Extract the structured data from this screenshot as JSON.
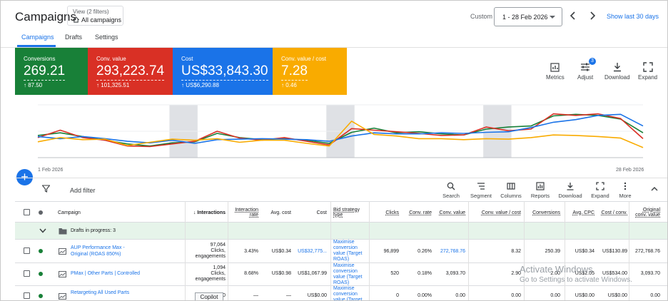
{
  "header": {
    "title": "Campaigns",
    "view_label": "View (2 filters)",
    "view_value": "All campaigns",
    "custom_label": "Custom",
    "date_range": "1 - 28 Feb 2026",
    "show_last": "Show last 30 days"
  },
  "tabs": [
    {
      "label": "Campaigns",
      "active": true
    },
    {
      "label": "Drafts",
      "active": false
    },
    {
      "label": "Settings",
      "active": false
    }
  ],
  "scorecards": [
    {
      "label": "Conversions",
      "value": "269.21",
      "delta": "↑ 87.50",
      "color": "#188038"
    },
    {
      "label": "Conv. value",
      "value": "293,223.74",
      "delta": "↑ 101,325.51",
      "color": "#d93025"
    },
    {
      "label": "Cost",
      "value": "US$33,843.30",
      "delta": "↑ US$6,290.88",
      "color": "#1a73e8"
    },
    {
      "label": "Conv. value / cost",
      "value": "7.28",
      "delta": "↑ 0.46",
      "color": "#f9ab00"
    }
  ],
  "chart_tools": {
    "metrics": "Metrics",
    "adjust": "Adjust",
    "adjust_badge": "3",
    "download": "Download",
    "expand": "Expand"
  },
  "chart_data": {
    "type": "line",
    "x_start_label": "1 Feb 2026",
    "x_end_label": "28 Feb 2026",
    "x": [
      1,
      2,
      3,
      4,
      5,
      6,
      7,
      8,
      9,
      10,
      11,
      12,
      13,
      14,
      15,
      16,
      17,
      18,
      19,
      20,
      21,
      22,
      23,
      24,
      25,
      26,
      27,
      28
    ],
    "series": [
      {
        "color": "#188038",
        "values": [
          42,
          47,
          40,
          33,
          26,
          22,
          28,
          30,
          46,
          38,
          34,
          36,
          33,
          27,
          48,
          56,
          47,
          49,
          45,
          43,
          54,
          58,
          60,
          79,
          82,
          80,
          73,
          47
        ]
      },
      {
        "color": "#d93025",
        "values": [
          38,
          52,
          38,
          33,
          22,
          21,
          26,
          31,
          50,
          37,
          33,
          38,
          31,
          24,
          55,
          52,
          49,
          46,
          42,
          43,
          58,
          51,
          54,
          83,
          80,
          83,
          74,
          36
        ]
      },
      {
        "color": "#1a73e8",
        "values": [
          40,
          36,
          40,
          36,
          31,
          28,
          33,
          27,
          34,
          35,
          36,
          35,
          34,
          31,
          41,
          47,
          45,
          45,
          47,
          46,
          48,
          49,
          57,
          67,
          72,
          80,
          82,
          60
        ]
      },
      {
        "color": "#f9ab00",
        "values": [
          30,
          38,
          34,
          35,
          23,
          29,
          35,
          33,
          36,
          29,
          33,
          33,
          27,
          22,
          69,
          44,
          41,
          36,
          36,
          34,
          36,
          35,
          38,
          43,
          42,
          40,
          37,
          19
        ]
      }
    ],
    "shaded_weekends": [
      [
        7,
        8
      ],
      [
        14,
        15
      ],
      [
        21,
        22
      ]
    ],
    "grid": true
  },
  "toolbar": {
    "add_filter": "Add filter",
    "items": [
      "Search",
      "Segment",
      "Columns",
      "Reports",
      "Download",
      "Expand",
      "More"
    ]
  },
  "table": {
    "headers": {
      "campaign": "Campaign",
      "interactions": "↓ Interactions",
      "interaction_rate": "Interaction rate",
      "avg_cost": "Avg. cost",
      "cost": "Cost",
      "bid_strategy": "Bid strategy type",
      "clicks": "Clicks",
      "conv_rate": "Conv. rate",
      "conv_value": "Conv. value",
      "conv_value_cost": "Conv. value / cost",
      "conversions": "Conversions",
      "avg_cpc": "Avg. CPC",
      "cost_conv": "Cost / conv.",
      "original_conv_value": "Original conv. value"
    },
    "drafts_label": "Drafts in progress: 3",
    "rows": [
      {
        "name": "AUP Performance Max - Original (ROAS 850%)",
        "interactions": "97,064",
        "interactions_sub": "Clicks, engagements",
        "interaction_rate": "3.43%",
        "avg_cost": "US$0.34",
        "cost": "US$32,775...",
        "bid_strategy": "Maximise conversion value (Target ROAS)",
        "clicks": "96,899",
        "conv_rate": "0.26%",
        "conv_value": "272,768.76",
        "conv_value_cost": "8.32",
        "conversions": "250.39",
        "avg_cpc": "US$0.34",
        "cost_conv": "US$130.89",
        "original_conv_value": "272,768.76"
      },
      {
        "name": "PMax | Other Parts | Controlled",
        "interactions": "1,094",
        "interactions_sub": "Clicks, engagements",
        "interaction_rate": "8.68%",
        "avg_cost": "US$0.98",
        "cost": "US$1,067.99",
        "bid_strategy": "Maximise conversion value (Target ROAS)",
        "clicks": "520",
        "conv_rate": "0.18%",
        "conv_value": "3,093.70",
        "conv_value_cost": "2.90",
        "conversions": "2.00",
        "avg_cpc": "US$2.05",
        "cost_conv": "US$534.00",
        "original_conv_value": "3,093.70"
      },
      {
        "name": "Retargeting All Used Parts",
        "interactions": "0",
        "interaction_rate": "—",
        "avg_cost": "—",
        "cost": "US$0.00",
        "bid_strategy": "Maximise conversion value (Target",
        "clicks": "0",
        "conv_rate": "0.00%",
        "conv_value": "0.00",
        "conv_value_cost": "0.00",
        "conversions": "0.00",
        "avg_cpc": "US$0.00",
        "cost_conv": "US$0.00",
        "original_conv_value": "0.00"
      }
    ]
  },
  "overlay": {
    "copilot": "Copilot",
    "activate_title": "Activate Windows",
    "activate_sub": "Go to Settings to activate Windows."
  }
}
